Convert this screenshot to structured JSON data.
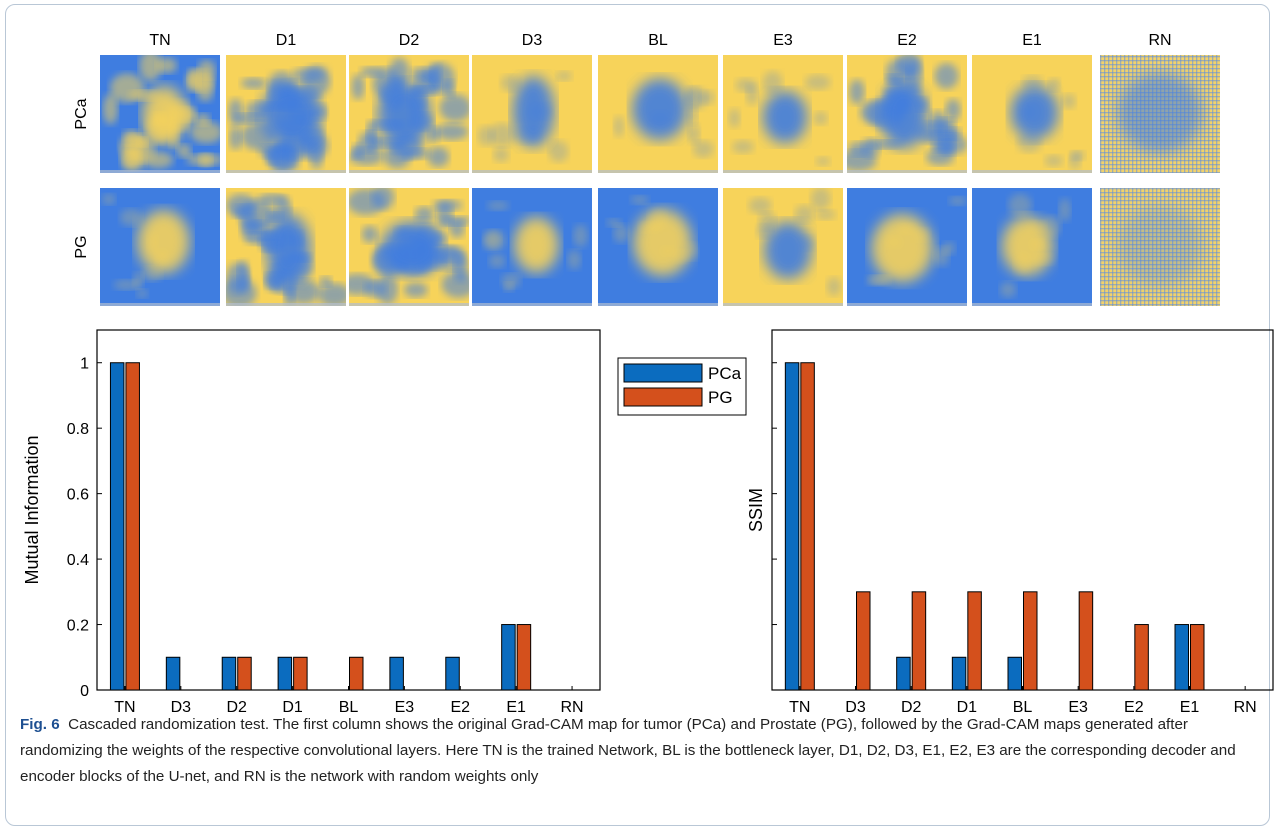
{
  "heatmap_grid": {
    "columns": [
      "TN",
      "D1",
      "D2",
      "D3",
      "BL",
      "E3",
      "E2",
      "E1",
      "RN"
    ],
    "rows": [
      "PCa",
      "PG"
    ],
    "colors": {
      "low": "#3f7de0",
      "high": "#f7d35a"
    }
  },
  "legend": {
    "items": [
      {
        "label": "PCa",
        "color": "#0b6cbf"
      },
      {
        "label": "PG",
        "color": "#d4501c"
      }
    ]
  },
  "chart_data": [
    {
      "type": "bar",
      "categories": [
        "TN",
        "D3",
        "D2",
        "D1",
        "BL",
        "E3",
        "E2",
        "E1",
        "RN"
      ],
      "series": [
        {
          "name": "PCa",
          "values": [
            1,
            0.1,
            0.1,
            0.1,
            0,
            0.1,
            0.1,
            0.2,
            0
          ]
        },
        {
          "name": "PG",
          "values": [
            1,
            0,
            0.1,
            0.1,
            0.1,
            0,
            0,
            0.2,
            0
          ]
        }
      ],
      "ylabel": "Mutual Information",
      "ylim": [
        0,
        1.1
      ],
      "yticks": [
        "0",
        "0.2",
        "0.4",
        "0.6",
        "0.8",
        "1"
      ],
      "grid": false
    },
    {
      "type": "bar",
      "categories": [
        "TN",
        "D3",
        "D2",
        "D1",
        "BL",
        "E3",
        "E2",
        "E1",
        "RN"
      ],
      "series": [
        {
          "name": "PCa",
          "values": [
            1,
            0,
            0.1,
            0.1,
            0.1,
            0,
            0,
            0.2,
            0
          ]
        },
        {
          "name": "PG",
          "values": [
            1,
            0.3,
            0.3,
            0.3,
            0.3,
            0.3,
            0.2,
            0.2,
            0
          ]
        }
      ],
      "ylabel": "SSIM",
      "ylim": [
        0,
        1.1
      ],
      "yticks": [],
      "grid": false
    }
  ],
  "caption": {
    "label": "Fig. 6",
    "text": "Cascaded randomization test. The first column shows the original Grad-CAM map for tumor (PCa) and Prostate (PG), followed by the Grad-CAM maps generated after randomizing the weights of the respective convolutional layers. Here TN is the trained Network, BL is the bottleneck layer, D1, D2, D3, E1, E2, E3 are the corresponding decoder and encoder blocks of the U-net, and RN is the network with random weights only"
  }
}
